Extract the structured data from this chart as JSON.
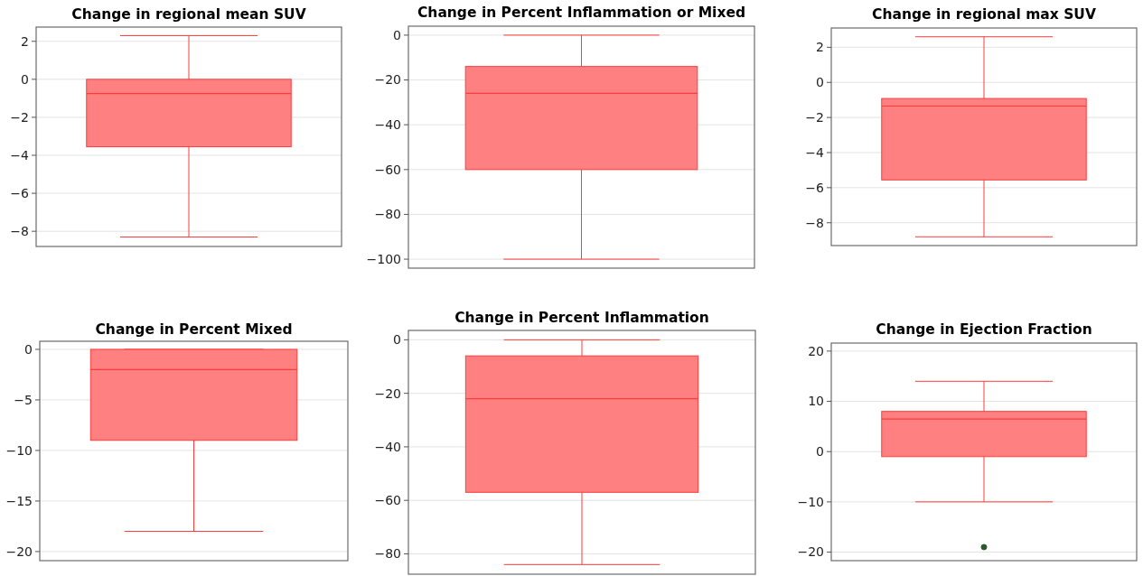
{
  "chart_data": [
    {
      "type": "box",
      "title": "Change in regional mean SUV",
      "categories": [
        null
      ],
      "color": "#ff8080",
      "ylim": [
        -8.8,
        2.75
      ],
      "yticks": [
        2,
        0,
        -2,
        -4,
        -6,
        -8
      ],
      "grid": "y",
      "boxes": [
        {
          "low": -8.3,
          "q1": -3.55,
          "median": -0.75,
          "q3": 0,
          "high": 2.3
        }
      ]
    },
    {
      "type": "box",
      "title": "Change in Percent Inflammation or Mixed",
      "categories": [
        null
      ],
      "color": "#ff8080",
      "ylim": [
        -104,
        4
      ],
      "yticks": [
        0,
        -20,
        -40,
        -60,
        -80,
        -100
      ],
      "grid": "y",
      "boxes": [
        {
          "low": -100,
          "q1": -60,
          "median": -26,
          "q3": -14,
          "high": 0
        }
      ]
    },
    {
      "type": "box",
      "title": "Change in regional max SUV",
      "categories": [
        null
      ],
      "color": "#ff8080",
      "ylim": [
        -9.3,
        3.1
      ],
      "yticks": [
        2,
        0,
        -2,
        -4,
        -6,
        -8
      ],
      "grid": "y",
      "boxes": [
        {
          "low": -8.8,
          "q1": -5.56,
          "median": -1.35,
          "q3": -0.92,
          "high": 2.6
        }
      ]
    },
    {
      "type": "box",
      "title": "Change in Percent Mixed",
      "categories": [
        null
      ],
      "color": "#ff8080",
      "ylim": [
        -20.9,
        0.8
      ],
      "yticks": [
        0,
        -5,
        -10,
        -15,
        -20
      ],
      "grid": "y",
      "boxes": [
        {
          "low": -18,
          "q1": -9,
          "median": -2,
          "q3": 0,
          "high": 0
        }
      ]
    },
    {
      "type": "box",
      "title": "Change in Percent Inflammation",
      "categories": [
        null
      ],
      "color": "#ff8080",
      "ylim": [
        -87.6,
        3.5
      ],
      "yticks": [
        0,
        -20,
        -40,
        -60,
        -80
      ],
      "grid": "y",
      "boxes": [
        {
          "low": -84,
          "q1": -57,
          "median": -22,
          "q3": -6,
          "high": 0
        }
      ]
    },
    {
      "type": "box",
      "title": "Change in Ejection Fraction",
      "categories": [
        null
      ],
      "color": "#ff8080",
      "ylim": [
        -21.7,
        21.6
      ],
      "yticks": [
        20,
        10,
        0,
        -10,
        -20
      ],
      "grid": "y",
      "boxes": [
        {
          "low": -10,
          "q1": -1,
          "median": 6.5,
          "q3": 8,
          "high": 14,
          "outliers": [
            -19
          ]
        }
      ]
    }
  ]
}
